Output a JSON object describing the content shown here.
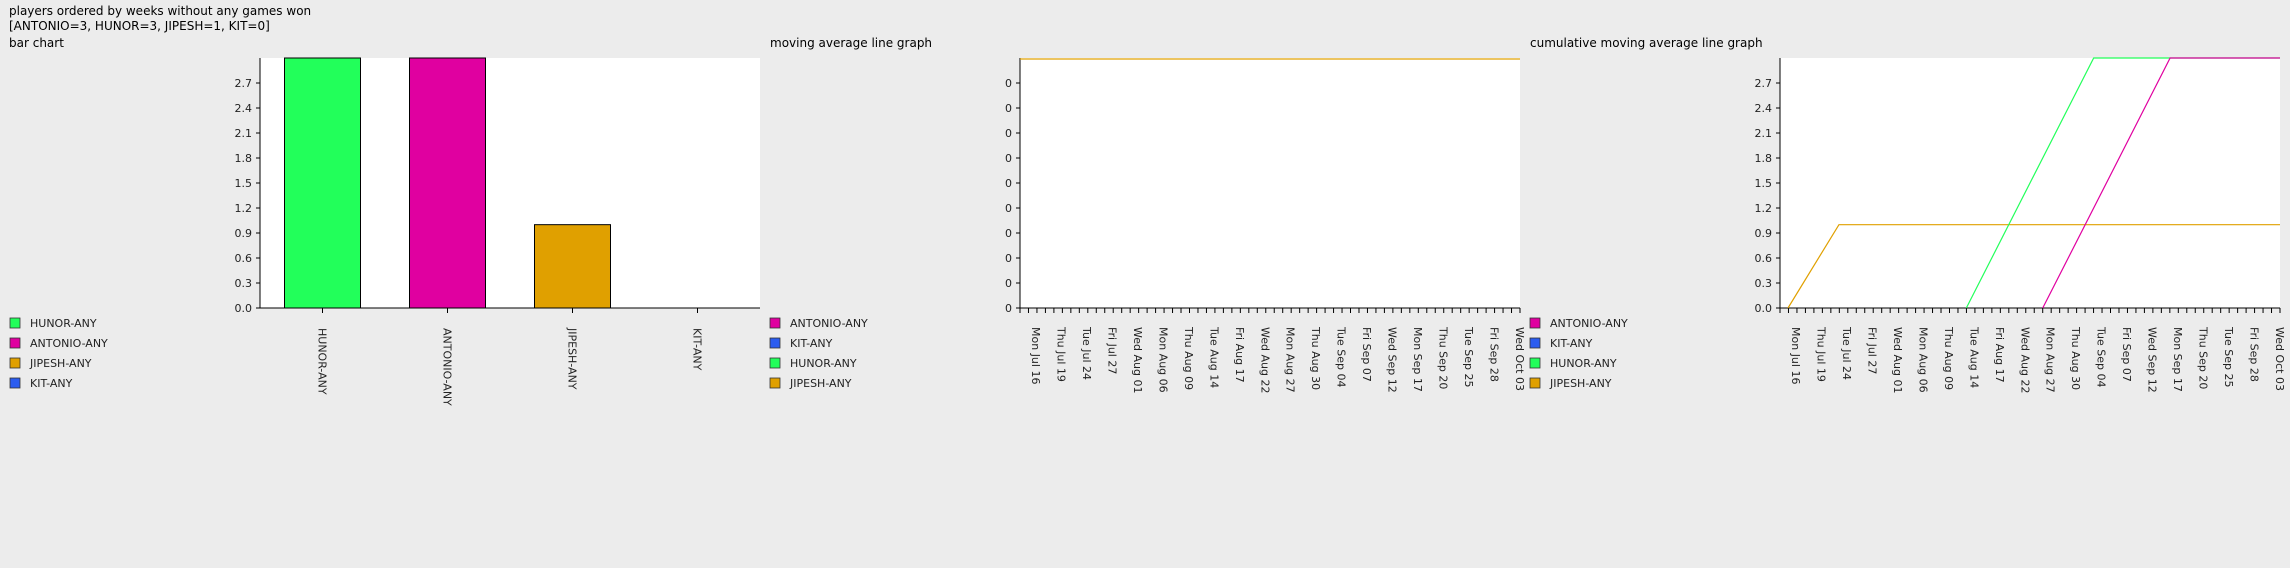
{
  "header": {
    "title": "players ordered by weeks without any games won",
    "summary": "[ANTONIO=3, HUNOR=3, JIPESH=1, KIT=0]"
  },
  "chart_data": [
    {
      "type": "bar",
      "title": "bar chart",
      "categories": [
        "HUNOR-ANY",
        "ANTONIO-ANY",
        "JIPESH-ANY",
        "KIT-ANY"
      ],
      "values": [
        3,
        3,
        1,
        0
      ],
      "colors": [
        "#22ff5a",
        "#e000a0",
        "#e0a000",
        "#2a5cf0"
      ],
      "ylim": [
        0,
        3
      ],
      "yticks": [
        "0.0",
        "0.3",
        "0.6",
        "0.9",
        "1.2",
        "1.5",
        "1.8",
        "2.1",
        "2.4",
        "2.7"
      ],
      "legend": [
        {
          "label": "HUNOR-ANY",
          "color": "#22ff5a"
        },
        {
          "label": "ANTONIO-ANY",
          "color": "#e000a0"
        },
        {
          "label": "JIPESH-ANY",
          "color": "#e0a000"
        },
        {
          "label": "KIT-ANY",
          "color": "#2a5cf0"
        }
      ],
      "legend_position": "bottom-left"
    },
    {
      "type": "line",
      "title": "moving average line graph",
      "x": [
        "Mon Jul 16",
        "Thu Jul 19",
        "Tue Jul 24",
        "Fri Jul 27",
        "Wed Aug 01",
        "Mon Aug 06",
        "Thu Aug 09",
        "Tue Aug 14",
        "Fri Aug 17",
        "Wed Aug 22",
        "Mon Aug 27",
        "Thu Aug 30",
        "Tue Sep 04",
        "Fri Sep 07",
        "Wed Sep 12",
        "Mon Sep 17",
        "Thu Sep 20",
        "Tue Sep 25",
        "Fri Sep 28",
        "Wed Oct 03"
      ],
      "yticks": [
        "0",
        "0",
        "0",
        "0",
        "0",
        "0",
        "0",
        "0",
        "0",
        "0"
      ],
      "series": [
        {
          "name": "JIPESH-ANY",
          "color": "#e0a000",
          "values": [
            1,
            1,
            1,
            1,
            1,
            1,
            1,
            1,
            1,
            1,
            1,
            1,
            1,
            1,
            1,
            1,
            1,
            1,
            1,
            1
          ]
        }
      ],
      "legend": [
        {
          "label": "ANTONIO-ANY",
          "color": "#e000a0"
        },
        {
          "label": "KIT-ANY",
          "color": "#2a5cf0"
        },
        {
          "label": "HUNOR-ANY",
          "color": "#22ff5a"
        },
        {
          "label": "JIPESH-ANY",
          "color": "#e0a000"
        }
      ],
      "legend_position": "bottom-left"
    },
    {
      "type": "line",
      "title": "cumulative moving average line graph",
      "x": [
        "Mon Jul 16",
        "Thu Jul 19",
        "Tue Jul 24",
        "Fri Jul 27",
        "Wed Aug 01",
        "Mon Aug 06",
        "Thu Aug 09",
        "Tue Aug 14",
        "Fri Aug 17",
        "Wed Aug 22",
        "Mon Aug 27",
        "Thu Aug 30",
        "Tue Sep 04",
        "Fri Sep 07",
        "Wed Sep 12",
        "Mon Sep 17",
        "Thu Sep 20",
        "Tue Sep 25",
        "Fri Sep 28",
        "Wed Oct 03"
      ],
      "ylim": [
        0,
        3
      ],
      "yticks": [
        "0.0",
        "0.3",
        "0.6",
        "0.9",
        "1.2",
        "1.5",
        "1.8",
        "2.1",
        "2.4",
        "2.7"
      ],
      "series": [
        {
          "name": "JIPESH-ANY",
          "color": "#e0a000",
          "points": [
            [
              "Mon Jul 16",
              0
            ],
            [
              "Tue Jul 24",
              1
            ],
            [
              "Wed Oct 03",
              1
            ]
          ]
        },
        {
          "name": "HUNOR-ANY",
          "color": "#22ff5a",
          "points": [
            [
              "Tue Aug 14",
              0
            ],
            [
              "Tue Sep 04",
              3
            ],
            [
              "Wed Oct 03",
              3
            ]
          ]
        },
        {
          "name": "ANTONIO-ANY",
          "color": "#e000a0",
          "points": [
            [
              "Mon Aug 27",
              0
            ],
            [
              "Mon Sep 17",
              3
            ],
            [
              "Wed Oct 03",
              3
            ]
          ]
        }
      ],
      "legend": [
        {
          "label": "ANTONIO-ANY",
          "color": "#e000a0"
        },
        {
          "label": "KIT-ANY",
          "color": "#2a5cf0"
        },
        {
          "label": "HUNOR-ANY",
          "color": "#22ff5a"
        },
        {
          "label": "JIPESH-ANY",
          "color": "#e0a000"
        }
      ],
      "legend_position": "bottom-left"
    }
  ]
}
